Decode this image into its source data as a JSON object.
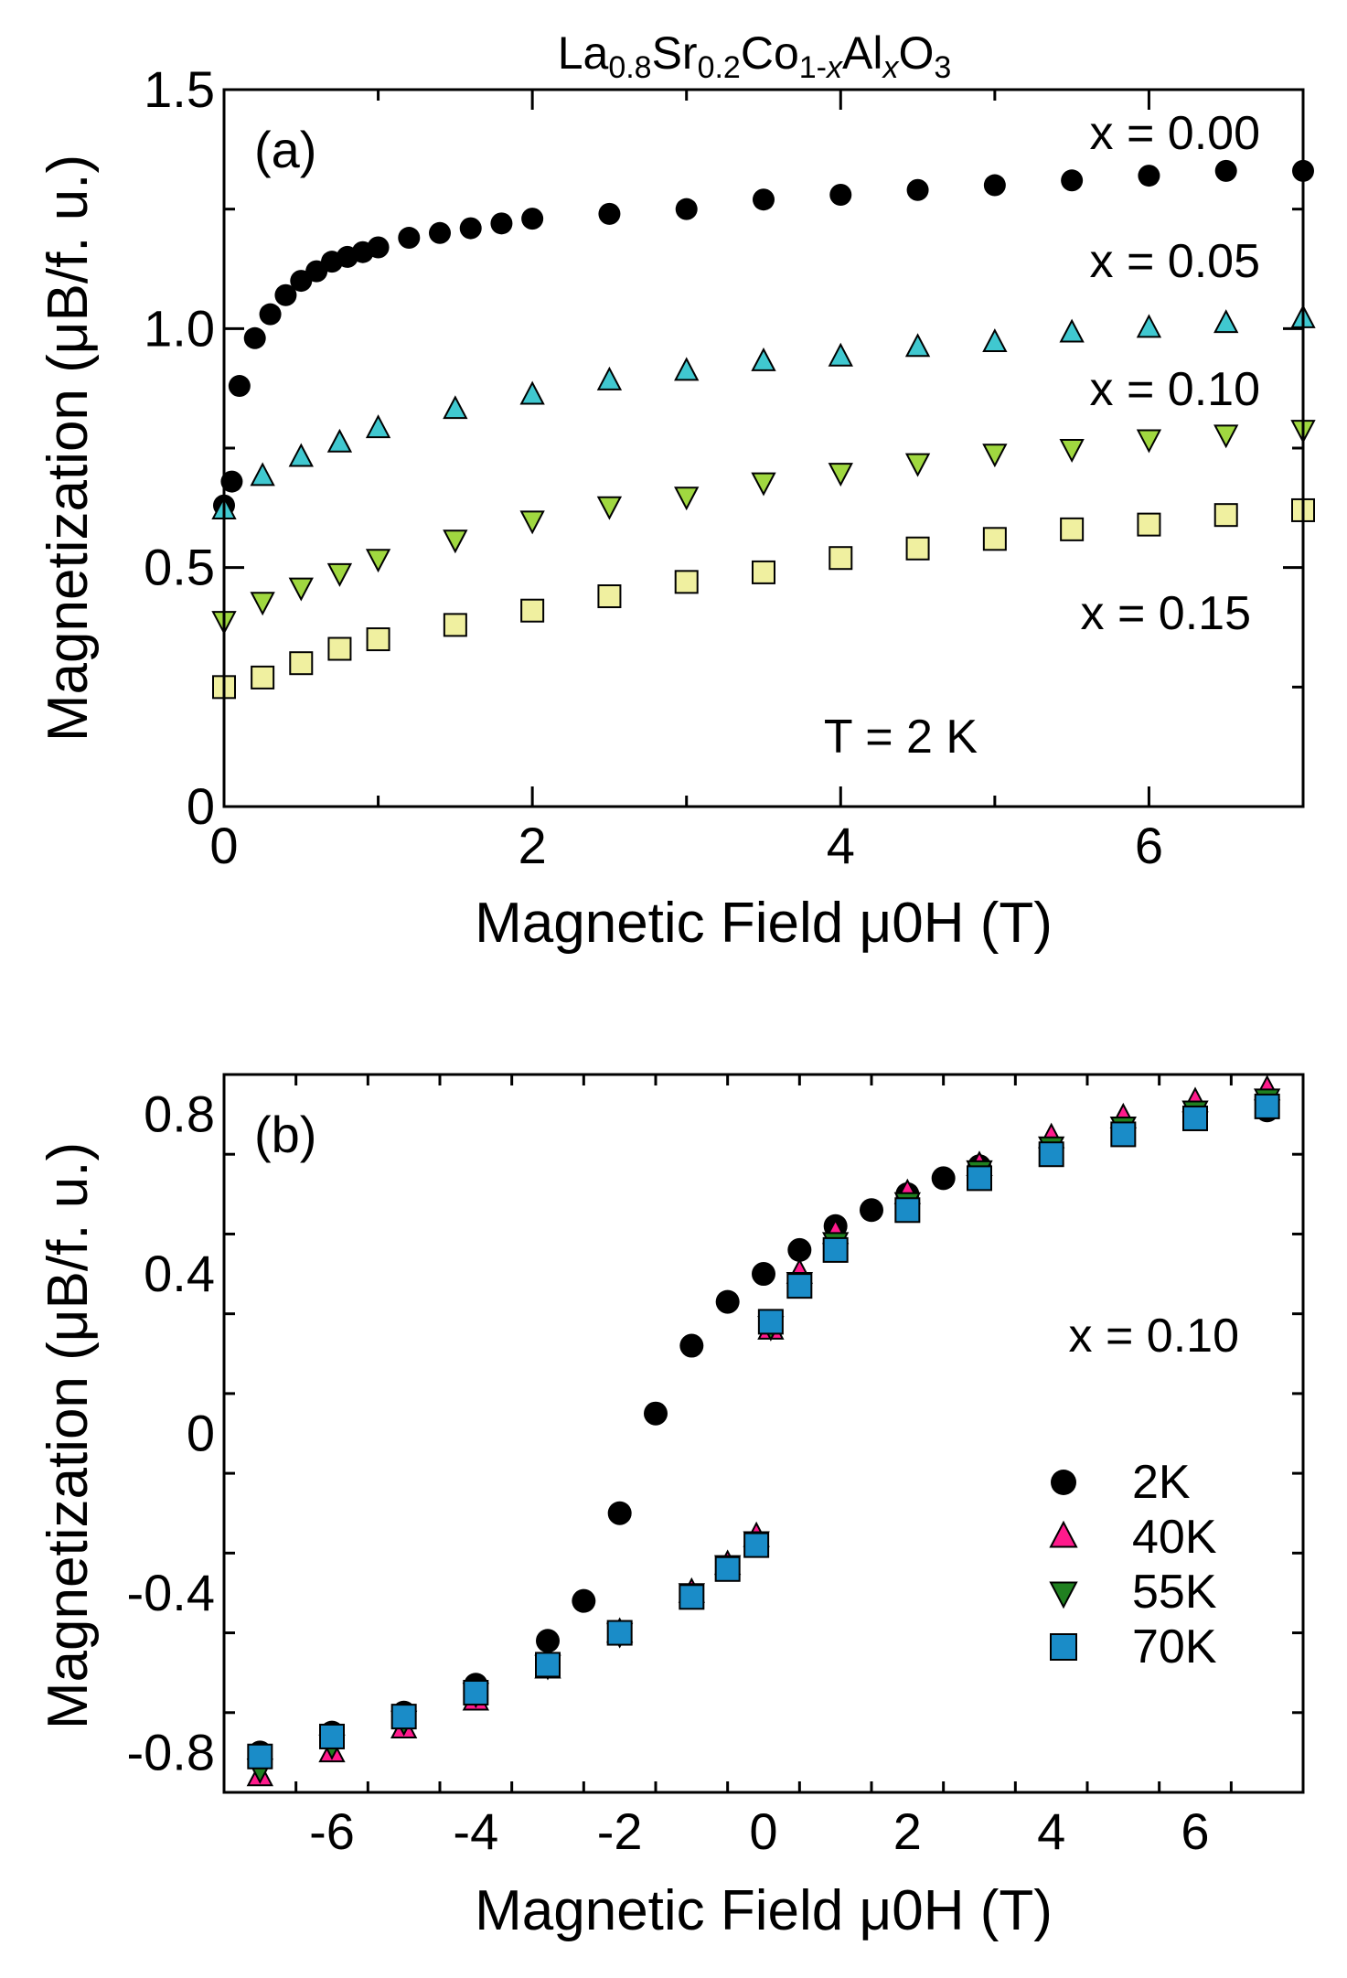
{
  "chart_data": [
    {
      "type": "scatter",
      "panel": "(a)",
      "title": "La0.8Sr0.2Co1-xAlxO3",
      "xlabel": "Magnetic Field μ0H (T)",
      "ylabel": "Magnetization (μB/f. u.)",
      "xlim": [
        0,
        7
      ],
      "ylim": [
        0,
        1.5
      ],
      "xticks": [
        0,
        2,
        4,
        6
      ],
      "xtick_labels": [
        "0",
        "2",
        "4",
        "6"
      ],
      "yticks": [
        0,
        0.5,
        1.0,
        1.5
      ],
      "ytick_labels": [
        "0",
        "0.5",
        "1.0",
        "1.5"
      ],
      "annotations": [
        "x = 0.00",
        "x = 0.05",
        "x = 0.10",
        "x = 0.15",
        "T = 2 K"
      ],
      "series": [
        {
          "name": "x = 0.00",
          "marker": "circle",
          "color": "#000000",
          "x": [
            0.0,
            0.05,
            0.1,
            0.2,
            0.3,
            0.4,
            0.5,
            0.6,
            0.7,
            0.8,
            0.9,
            1.0,
            1.2,
            1.4,
            1.6,
            1.8,
            2.0,
            2.5,
            3.0,
            3.5,
            4.0,
            4.5,
            5.0,
            5.5,
            6.0,
            6.5,
            7.0
          ],
          "y": [
            0.63,
            0.68,
            0.88,
            0.98,
            1.03,
            1.07,
            1.1,
            1.12,
            1.14,
            1.15,
            1.16,
            1.17,
            1.19,
            1.2,
            1.21,
            1.22,
            1.23,
            1.24,
            1.25,
            1.27,
            1.28,
            1.29,
            1.3,
            1.31,
            1.32,
            1.33,
            1.33
          ]
        },
        {
          "name": "x = 0.05",
          "marker": "triangle-up",
          "color": "#40c8d0",
          "x": [
            0.0,
            0.25,
            0.5,
            0.75,
            1.0,
            1.5,
            2.0,
            2.5,
            3.0,
            3.5,
            4.0,
            4.5,
            5.0,
            5.5,
            6.0,
            6.5,
            7.0
          ],
          "y": [
            0.62,
            0.69,
            0.73,
            0.76,
            0.79,
            0.83,
            0.86,
            0.89,
            0.91,
            0.93,
            0.94,
            0.96,
            0.97,
            0.99,
            1.0,
            1.01,
            1.02
          ]
        },
        {
          "name": "x = 0.10",
          "marker": "triangle-down",
          "color": "#a0d840",
          "x": [
            0.0,
            0.25,
            0.5,
            0.75,
            1.0,
            1.5,
            2.0,
            2.5,
            3.0,
            3.5,
            4.0,
            4.5,
            5.0,
            5.5,
            6.0,
            6.5,
            7.0
          ],
          "y": [
            0.39,
            0.43,
            0.46,
            0.49,
            0.52,
            0.56,
            0.6,
            0.63,
            0.65,
            0.68,
            0.7,
            0.72,
            0.74,
            0.75,
            0.77,
            0.78,
            0.79
          ]
        },
        {
          "name": "x = 0.15",
          "marker": "square",
          "color": "#f0f0a0",
          "x": [
            0.0,
            0.25,
            0.5,
            0.75,
            1.0,
            1.5,
            2.0,
            2.5,
            3.0,
            3.5,
            4.0,
            4.5,
            5.0,
            5.5,
            6.0,
            6.5,
            7.0
          ],
          "y": [
            0.25,
            0.27,
            0.3,
            0.33,
            0.35,
            0.38,
            0.41,
            0.44,
            0.47,
            0.49,
            0.52,
            0.54,
            0.56,
            0.58,
            0.59,
            0.61,
            0.62
          ]
        }
      ]
    },
    {
      "type": "scatter",
      "panel": "(b)",
      "xlabel": "Magnetic Field μ0H (T)",
      "ylabel": "Magnetization (μB/f. u.)",
      "xlim": [
        -7.5,
        7.5
      ],
      "ylim": [
        -0.9,
        0.9
      ],
      "xticks": [
        -6,
        -4,
        -2,
        0,
        2,
        4,
        6
      ],
      "xtick_labels": [
        "-6",
        "-4",
        "-2",
        "0",
        "2",
        "4",
        "6"
      ],
      "yticks": [
        -0.8,
        -0.4,
        0,
        0.4,
        0.8
      ],
      "ytick_labels": [
        "-0.8",
        "-0.4",
        "0",
        "0.4",
        "0.8"
      ],
      "annotations": [
        "x = 0.10"
      ],
      "legend_position": "lower-right",
      "series": [
        {
          "name": "2K",
          "marker": "circle",
          "color": "#000000",
          "x": [
            -7.0,
            -6.0,
            -5.0,
            -4.0,
            -3.0,
            -2.5,
            -2.0,
            -1.5,
            -1.0,
            -0.5,
            0.0,
            0.5,
            1.0,
            1.5,
            2.0,
            2.5,
            3.0,
            4.0,
            5.0,
            6.0,
            7.0
          ],
          "y": [
            -0.8,
            -0.75,
            -0.7,
            -0.63,
            -0.52,
            -0.42,
            -0.2,
            0.05,
            0.22,
            0.33,
            0.4,
            0.46,
            0.52,
            0.56,
            0.6,
            0.64,
            0.67,
            0.72,
            0.76,
            0.79,
            0.81
          ]
        },
        {
          "name": "40K",
          "marker": "triangle-up",
          "color": "#ff1a8c",
          "x": [
            -7.0,
            -6.0,
            -5.0,
            -4.0,
            -3.0,
            -2.0,
            -1.0,
            -0.5,
            -0.1,
            0.1,
            0.5,
            1.0,
            2.0,
            3.0,
            4.0,
            5.0,
            6.0,
            7.0
          ],
          "y": [
            -0.86,
            -0.8,
            -0.74,
            -0.67,
            -0.59,
            -0.5,
            -0.4,
            -0.33,
            -0.26,
            0.26,
            0.4,
            0.5,
            0.6,
            0.67,
            0.74,
            0.79,
            0.83,
            0.86
          ]
        },
        {
          "name": "55K",
          "marker": "triangle-down",
          "color": "#208020",
          "x": [
            -7.0,
            -6.0,
            -5.0,
            -4.0,
            -3.0,
            -2.0,
            -1.0,
            -0.5,
            -0.1,
            0.1,
            0.5,
            1.0,
            2.0,
            3.0,
            4.0,
            5.0,
            6.0,
            7.0
          ],
          "y": [
            -0.84,
            -0.78,
            -0.72,
            -0.65,
            -0.58,
            -0.5,
            -0.4,
            -0.33,
            -0.27,
            0.27,
            0.38,
            0.48,
            0.58,
            0.66,
            0.72,
            0.77,
            0.81,
            0.84
          ]
        },
        {
          "name": "70K",
          "marker": "square",
          "color": "#1a8cc8",
          "x": [
            -7.0,
            -6.0,
            -5.0,
            -4.0,
            -3.0,
            -2.0,
            -1.0,
            -0.5,
            -0.1,
            0.1,
            0.5,
            1.0,
            2.0,
            3.0,
            4.0,
            5.0,
            6.0,
            7.0
          ],
          "y": [
            -0.81,
            -0.76,
            -0.71,
            -0.65,
            -0.58,
            -0.5,
            -0.41,
            -0.34,
            -0.28,
            0.28,
            0.37,
            0.46,
            0.56,
            0.64,
            0.7,
            0.75,
            0.79,
            0.82
          ]
        }
      ]
    }
  ]
}
